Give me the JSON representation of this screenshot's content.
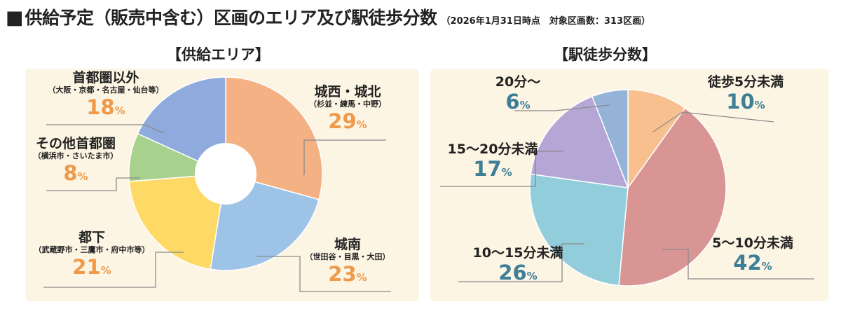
{
  "title": {
    "square": "■",
    "main": "供給予定（販売中含む）区画のエリア及び駅徒歩分数",
    "note": "（2026年1月31日時点　対象区画数：313区画）"
  },
  "colors": {
    "panel_bg": "#fdf5e4",
    "percent_left": "#ef9a4b",
    "percent_right": "#3e7f97",
    "leader": "#8a8a8a"
  },
  "chart_data": [
    {
      "type": "pie",
      "title": "【供給エリア】",
      "unit": "%",
      "start_angle_deg": 0,
      "slices": [
        {
          "label": "城西・城北",
          "sublabel": "（杉並・練馬・中野）",
          "value": 29,
          "color": "#f4b183"
        },
        {
          "label": "城南",
          "sublabel": "（世田谷・目黒・大田）",
          "value": 23,
          "color": "#9dc3e6"
        },
        {
          "label": "都下",
          "sublabel": "（武蔵野市・三鷹市・府中市等）",
          "value": 21,
          "color": "#ffd966"
        },
        {
          "label": "その他首都圏",
          "sublabel": "（横浜市・さいたま市）",
          "value": 8,
          "color": "#a9d18e"
        },
        {
          "label": "首都圏以外",
          "sublabel": "（大阪・京都・名古屋・仙台等）",
          "value": 18,
          "color": "#8faadc"
        }
      ]
    },
    {
      "type": "pie",
      "title": "【駅徒歩分数】",
      "unit": "%",
      "start_angle_deg": 0,
      "slices": [
        {
          "label": "徒歩5分未満",
          "value": 10,
          "color": "#f8c08e"
        },
        {
          "label": "5～10分未満",
          "value": 42,
          "color": "#d99594"
        },
        {
          "label": "10～15分未満",
          "value": 26,
          "color": "#92cddc"
        },
        {
          "label": "15～20分未満",
          "value": 17,
          "color": "#b4a7d6"
        },
        {
          "label": "20分～",
          "value": 6,
          "color": "#95b3d7"
        }
      ]
    }
  ]
}
